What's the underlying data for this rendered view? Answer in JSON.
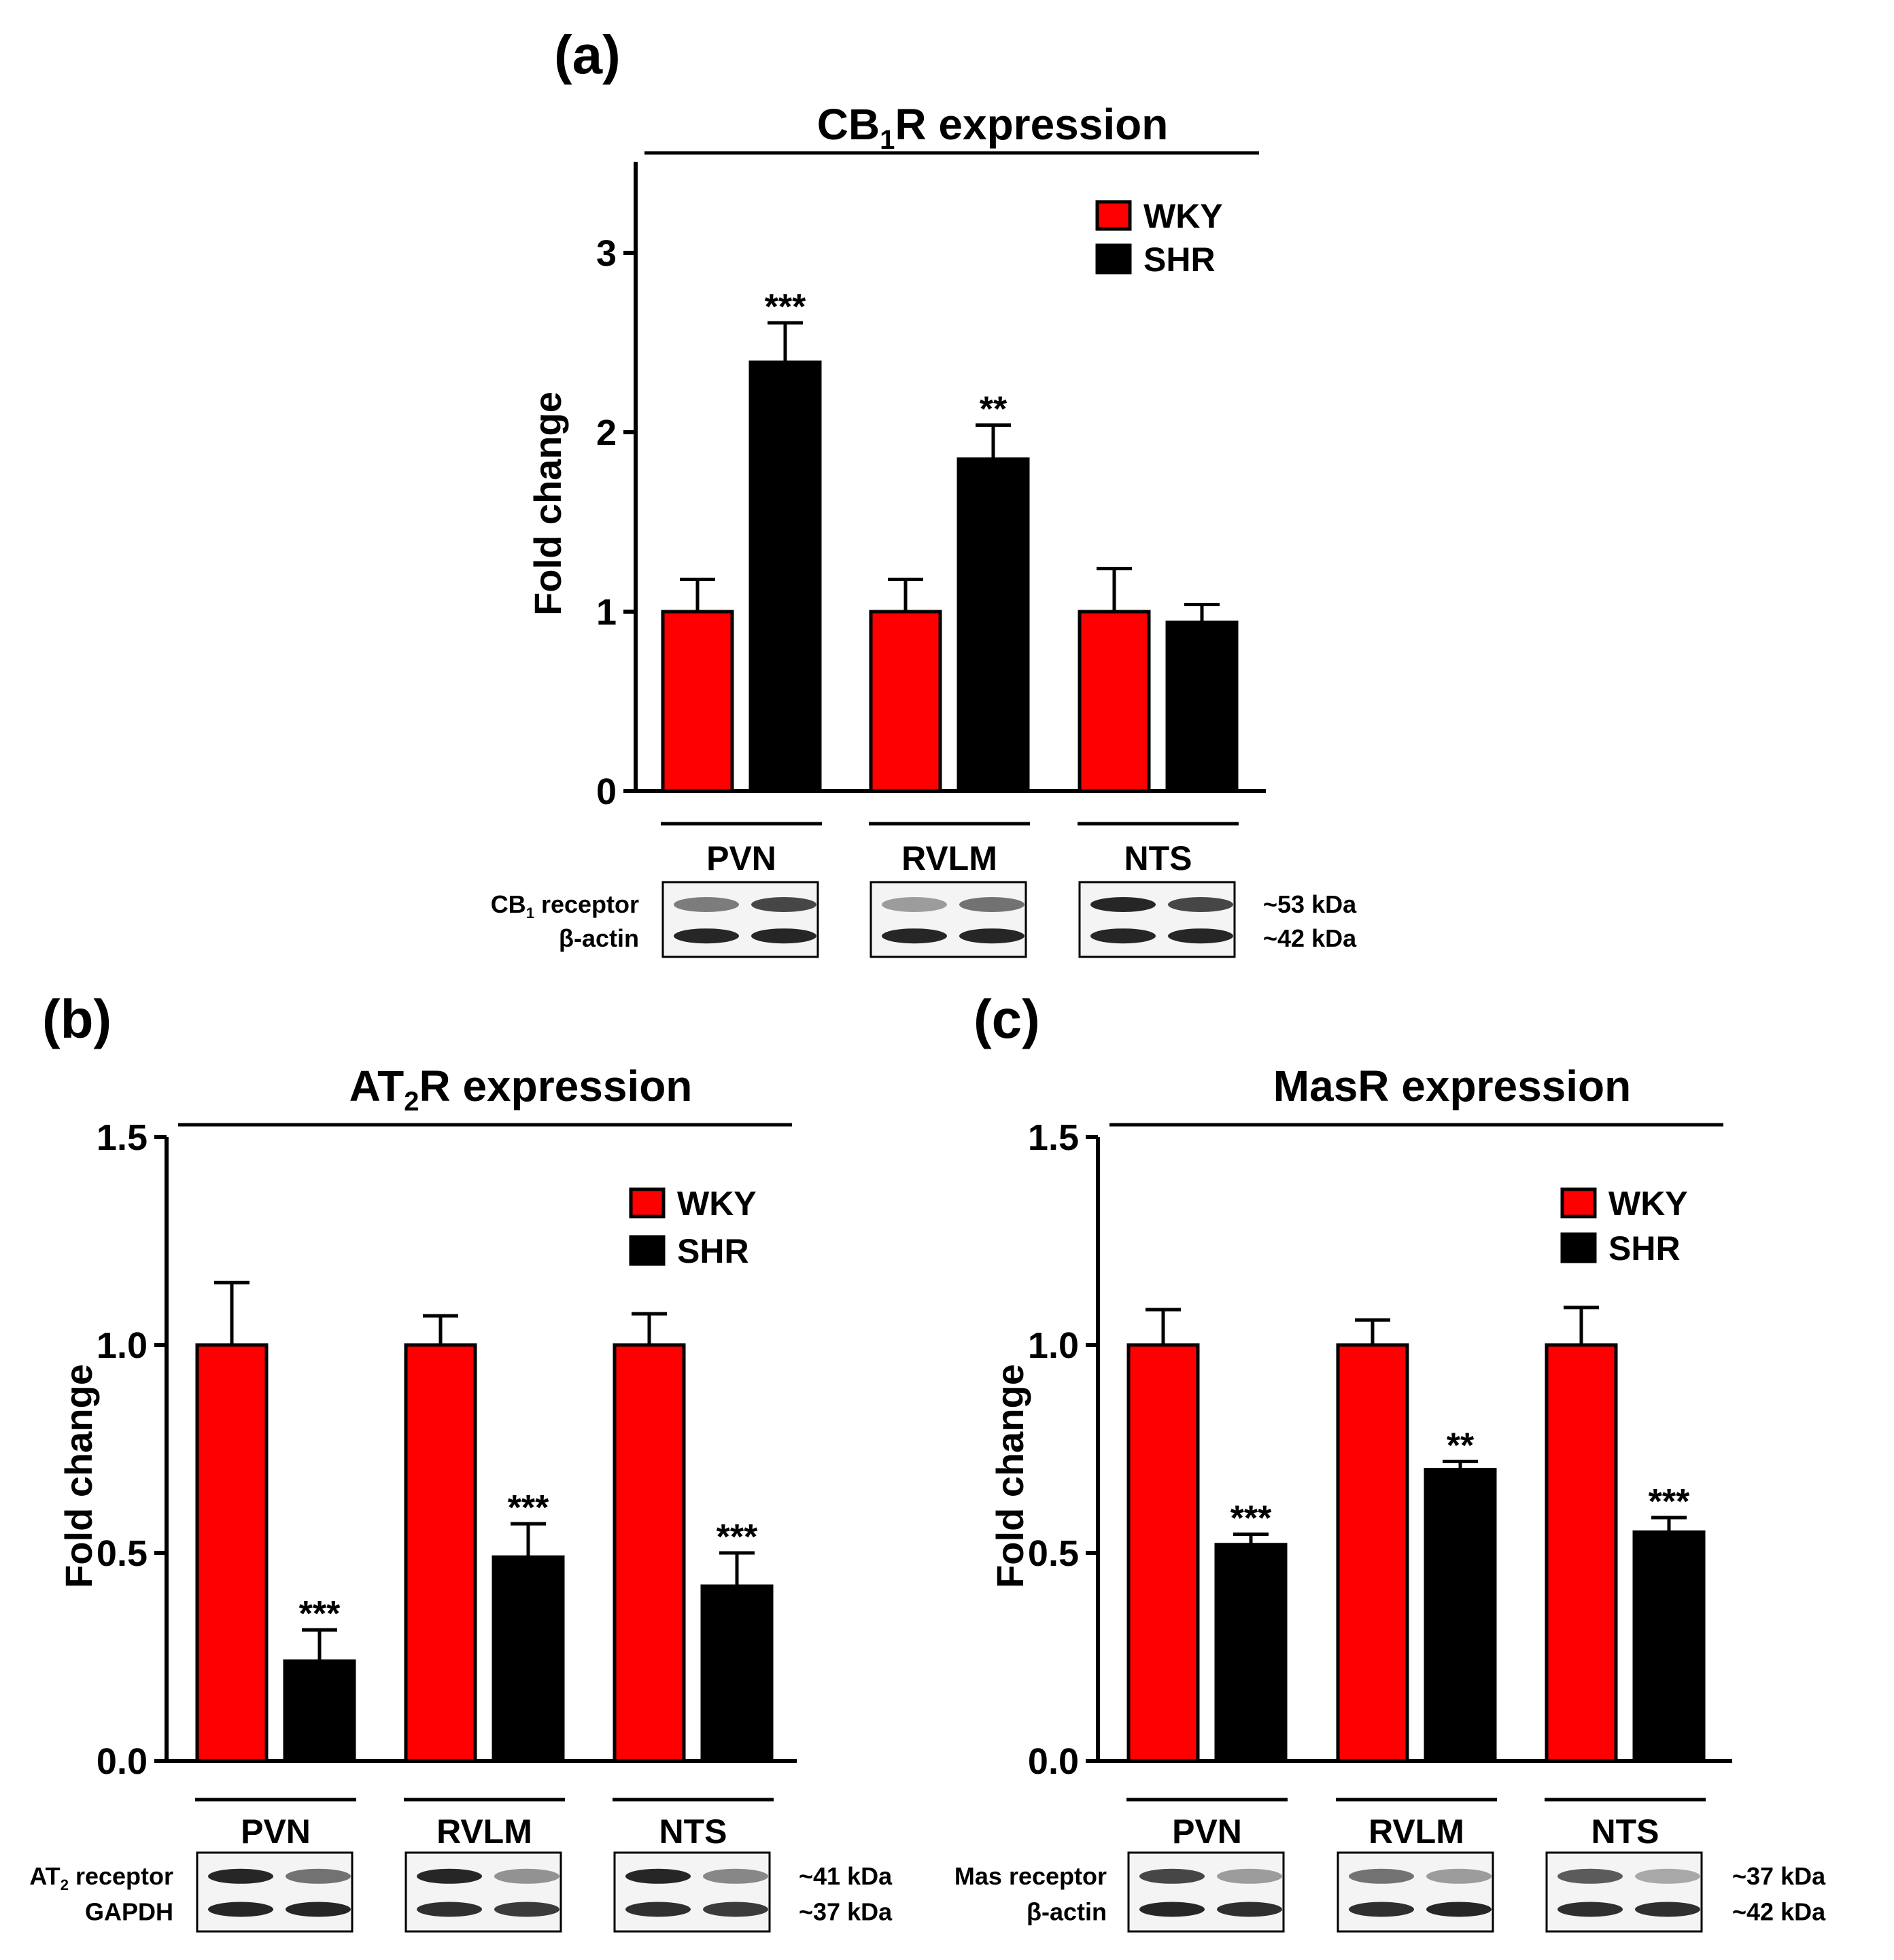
{
  "figure": {
    "colors": {
      "wky": "#ff0000",
      "shr": "#000000",
      "axis": "#000000",
      "band": "#1a1a1a",
      "blot_bg": "#f4f4f4"
    }
  },
  "chart_data": [
    {
      "id": "a",
      "panel_label": "(a)",
      "type": "bar",
      "title": "CB1R expression",
      "title_main": "CB",
      "title_sub": "1",
      "title_rest": "R expression",
      "ylabel": "Fold change",
      "xlabel": "",
      "ylim": [
        0,
        3.5
      ],
      "yticks": [
        0,
        1,
        2,
        3
      ],
      "ytick_labels": [
        "0",
        "1",
        "2",
        "3"
      ],
      "grid": false,
      "legend_position": "top-right",
      "categories": [
        "PVN",
        "RVLM",
        "NTS"
      ],
      "series": [
        {
          "name": "WKY",
          "values": [
            1.0,
            1.0,
            1.0
          ],
          "errors": [
            0.18,
            0.18,
            0.24
          ],
          "significance": [
            "",
            "",
            ""
          ]
        },
        {
          "name": "SHR",
          "values": [
            2.39,
            1.85,
            0.94
          ],
          "errors": [
            0.22,
            0.19,
            0.1
          ],
          "significance": [
            "***",
            "**",
            ""
          ]
        }
      ],
      "blot": {
        "row1_label": "CB1 receptor",
        "row1_main": "CB",
        "row1_sub": "1",
        "row1_rest": " receptor",
        "row2_label": "β-actin",
        "mw1": "~53 kDa",
        "mw2": "~42 kDa",
        "bands": [
          [
            [
              0.55,
              0.8
            ],
            [
              0.95,
              0.95
            ]
          ],
          [
            [
              0.4,
              0.6
            ],
            [
              0.95,
              0.95
            ]
          ],
          [
            [
              0.95,
              0.8
            ],
            [
              0.95,
              0.95
            ]
          ]
        ]
      }
    },
    {
      "id": "b",
      "panel_label": "(b)",
      "type": "bar",
      "title": "AT2R expression",
      "title_main": "AT",
      "title_sub": "2",
      "title_rest": "R expression",
      "ylabel": "Fold change",
      "xlabel": "",
      "ylim": [
        0,
        1.5
      ],
      "yticks": [
        0,
        0.5,
        1.0,
        1.5
      ],
      "ytick_labels": [
        "0.0",
        "0.5",
        "1.0",
        "1.5"
      ],
      "grid": false,
      "legend_position": "top-right",
      "categories": [
        "PVN",
        "RVLM",
        "NTS"
      ],
      "series": [
        {
          "name": "WKY",
          "values": [
            1.0,
            1.0,
            1.0
          ],
          "errors": [
            0.15,
            0.07,
            0.075
          ],
          "significance": [
            "",
            "",
            ""
          ]
        },
        {
          "name": "SHR",
          "values": [
            0.24,
            0.49,
            0.42
          ],
          "errors": [
            0.075,
            0.08,
            0.08
          ],
          "significance": [
            "***",
            "***",
            "***"
          ]
        }
      ],
      "blot": {
        "row1_label": "AT2 receptor",
        "row1_main": "AT",
        "row1_sub": "2",
        "row1_rest": " receptor",
        "row2_label": "GAPDH",
        "mw1": "~41 kDa",
        "mw2": "~37 kDa",
        "bands": [
          [
            [
              0.95,
              0.6
            ],
            [
              0.95,
              0.95
            ]
          ],
          [
            [
              0.95,
              0.45
            ],
            [
              0.9,
              0.85
            ]
          ],
          [
            [
              0.95,
              0.5
            ],
            [
              0.9,
              0.85
            ]
          ]
        ]
      }
    },
    {
      "id": "c",
      "panel_label": "(c)",
      "type": "bar",
      "title": "MasR expression",
      "title_main": "MasR expression",
      "title_sub": "",
      "title_rest": "",
      "ylabel": "Fold change",
      "xlabel": "",
      "ylim": [
        0,
        1.5
      ],
      "yticks": [
        0,
        0.5,
        1.0,
        1.5
      ],
      "ytick_labels": [
        "0.0",
        "0.5",
        "1.0",
        "1.5"
      ],
      "grid": false,
      "legend_position": "top-right",
      "categories": [
        "PVN",
        "RVLM",
        "NTS"
      ],
      "series": [
        {
          "name": "WKY",
          "values": [
            1.0,
            1.0,
            1.0
          ],
          "errors": [
            0.085,
            0.06,
            0.09
          ],
          "significance": [
            "",
            "",
            ""
          ]
        },
        {
          "name": "SHR",
          "values": [
            0.52,
            0.7,
            0.55
          ],
          "errors": [
            0.025,
            0.02,
            0.035
          ],
          "significance": [
            "***",
            "**",
            "***"
          ]
        }
      ],
      "blot": {
        "row1_label": "Mas receptor",
        "row1_main": "Mas receptor",
        "row1_sub": "",
        "row1_rest": "",
        "row2_label": "β-actin",
        "mw1": "~37 kDa",
        "mw2": "~42 kDa",
        "bands": [
          [
            [
              0.8,
              0.4
            ],
            [
              0.95,
              0.9
            ]
          ],
          [
            [
              0.6,
              0.4
            ],
            [
              0.9,
              0.95
            ]
          ],
          [
            [
              0.7,
              0.35
            ],
            [
              0.9,
              0.9
            ]
          ]
        ]
      }
    }
  ]
}
